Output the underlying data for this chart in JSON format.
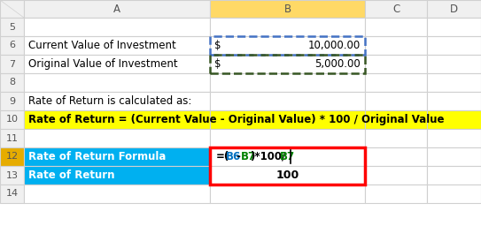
{
  "row6_a": "Current Value of Investment",
  "row6_b_dollar": "$",
  "row6_b_val": "10,000.00",
  "row7_a": "Original Value of Investment",
  "row7_b_dollar": "$",
  "row7_b_val": "5,000.00",
  "row9_a": "Rate of Return is calculated as:",
  "row10_text": "Rate of Return = (Current Value - Original Value) * 100 / Original Value",
  "row12_a": "Rate of Return Formula",
  "row12_b_parts": [
    "=(",
    "B6",
    "-",
    "B7",
    ")*100/",
    "B7"
  ],
  "row12_b_colors": [
    "#000000",
    "#0070c0",
    "#000000",
    "#008000",
    "#000000",
    "#008000"
  ],
  "row13_a": "Rate of Return",
  "row13_b": "100",
  "bg_white": "#ffffff",
  "bg_yellow": "#ffff00",
  "bg_cyan": "#00b0f0",
  "bg_light_yellow": "#ffd966",
  "bg_row12_num": "#e6ac00",
  "grid_color": "#d0d0d0",
  "header_bg": "#f0f0f0",
  "blue_border": "#4472c4",
  "green_border": "#375623",
  "red_border": "#ff0000",
  "fig_width": 5.43,
  "fig_height": 2.56
}
